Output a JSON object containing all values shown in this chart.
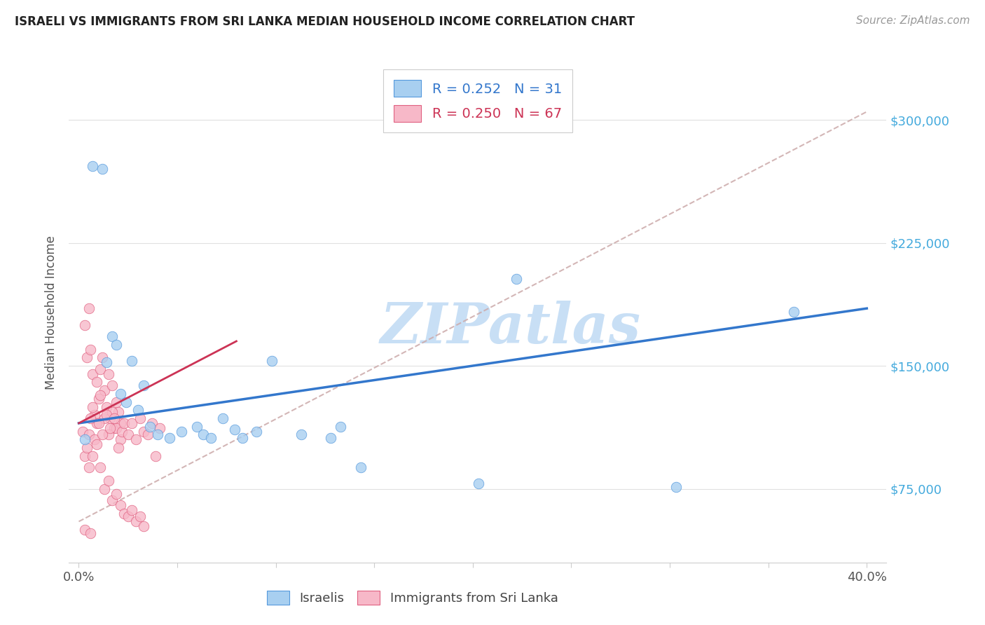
{
  "title": "ISRAELI VS IMMIGRANTS FROM SRI LANKA MEDIAN HOUSEHOLD INCOME CORRELATION CHART",
  "source": "Source: ZipAtlas.com",
  "ylabel": "Median Household Income",
  "ytick_labels": [
    "$75,000",
    "$150,000",
    "$225,000",
    "$300,000"
  ],
  "ytick_values": [
    75000,
    150000,
    225000,
    300000
  ],
  "watermark": "ZIPatlas",
  "legend_label1": "Israelis",
  "legend_label2": "Immigrants from Sri Lanka",
  "R1": "0.252",
  "N1": "31",
  "R2": "0.250",
  "N2": "67",
  "blue_fill": "#a8cff0",
  "pink_fill": "#f7b8c8",
  "blue_edge": "#5599dd",
  "pink_edge": "#e06080",
  "blue_line": "#3377cc",
  "pink_line": "#cc3355",
  "dashed_color": "#ccaaaa",
  "title_color": "#222222",
  "ylabel_color": "#555555",
  "ytick_color": "#44aadd",
  "xtick_color": "#555555",
  "source_color": "#999999",
  "watermark_color": "#c8dff5",
  "grid_color": "#e0e0e0",
  "xlim": [
    -0.005,
    0.41
  ],
  "ylim": [
    30000,
    335000
  ],
  "israelis_x": [
    0.003,
    0.007,
    0.012,
    0.014,
    0.017,
    0.019,
    0.021,
    0.024,
    0.027,
    0.03,
    0.033,
    0.036,
    0.04,
    0.046,
    0.052,
    0.06,
    0.063,
    0.067,
    0.073,
    0.079,
    0.083,
    0.09,
    0.098,
    0.113,
    0.128,
    0.133,
    0.143,
    0.203,
    0.222,
    0.303,
    0.363
  ],
  "israelis_y": [
    105000,
    272000,
    270000,
    152000,
    168000,
    163000,
    133000,
    128000,
    153000,
    123000,
    138000,
    113000,
    108000,
    106000,
    110000,
    113000,
    108000,
    106000,
    118000,
    111000,
    106000,
    110000,
    153000,
    108000,
    106000,
    113000,
    88000,
    78000,
    203000,
    76000,
    183000
  ],
  "srilanka_x": [
    0.002,
    0.003,
    0.004,
    0.005,
    0.006,
    0.007,
    0.008,
    0.009,
    0.01,
    0.011,
    0.012,
    0.013,
    0.014,
    0.015,
    0.016,
    0.017,
    0.018,
    0.019,
    0.02,
    0.021,
    0.003,
    0.005,
    0.007,
    0.009,
    0.011,
    0.013,
    0.015,
    0.017,
    0.019,
    0.021,
    0.004,
    0.006,
    0.008,
    0.01,
    0.012,
    0.014,
    0.016,
    0.018,
    0.02,
    0.022,
    0.023,
    0.025,
    0.027,
    0.029,
    0.031,
    0.033,
    0.035,
    0.037,
    0.039,
    0.041,
    0.005,
    0.007,
    0.009,
    0.011,
    0.013,
    0.015,
    0.017,
    0.019,
    0.021,
    0.023,
    0.025,
    0.027,
    0.029,
    0.031,
    0.033,
    0.003,
    0.006
  ],
  "srilanka_y": [
    110000,
    175000,
    155000,
    185000,
    160000,
    145000,
    120000,
    140000,
    130000,
    148000,
    155000,
    135000,
    125000,
    145000,
    118000,
    138000,
    112000,
    128000,
    122000,
    115000,
    95000,
    108000,
    125000,
    115000,
    132000,
    118000,
    108000,
    122000,
    112000,
    105000,
    100000,
    118000,
    105000,
    115000,
    108000,
    120000,
    112000,
    118000,
    100000,
    110000,
    115000,
    108000,
    115000,
    105000,
    118000,
    110000,
    108000,
    115000,
    95000,
    112000,
    88000,
    95000,
    102000,
    88000,
    75000,
    80000,
    68000,
    72000,
    65000,
    60000,
    58000,
    62000,
    55000,
    58000,
    52000,
    50000,
    48000
  ]
}
